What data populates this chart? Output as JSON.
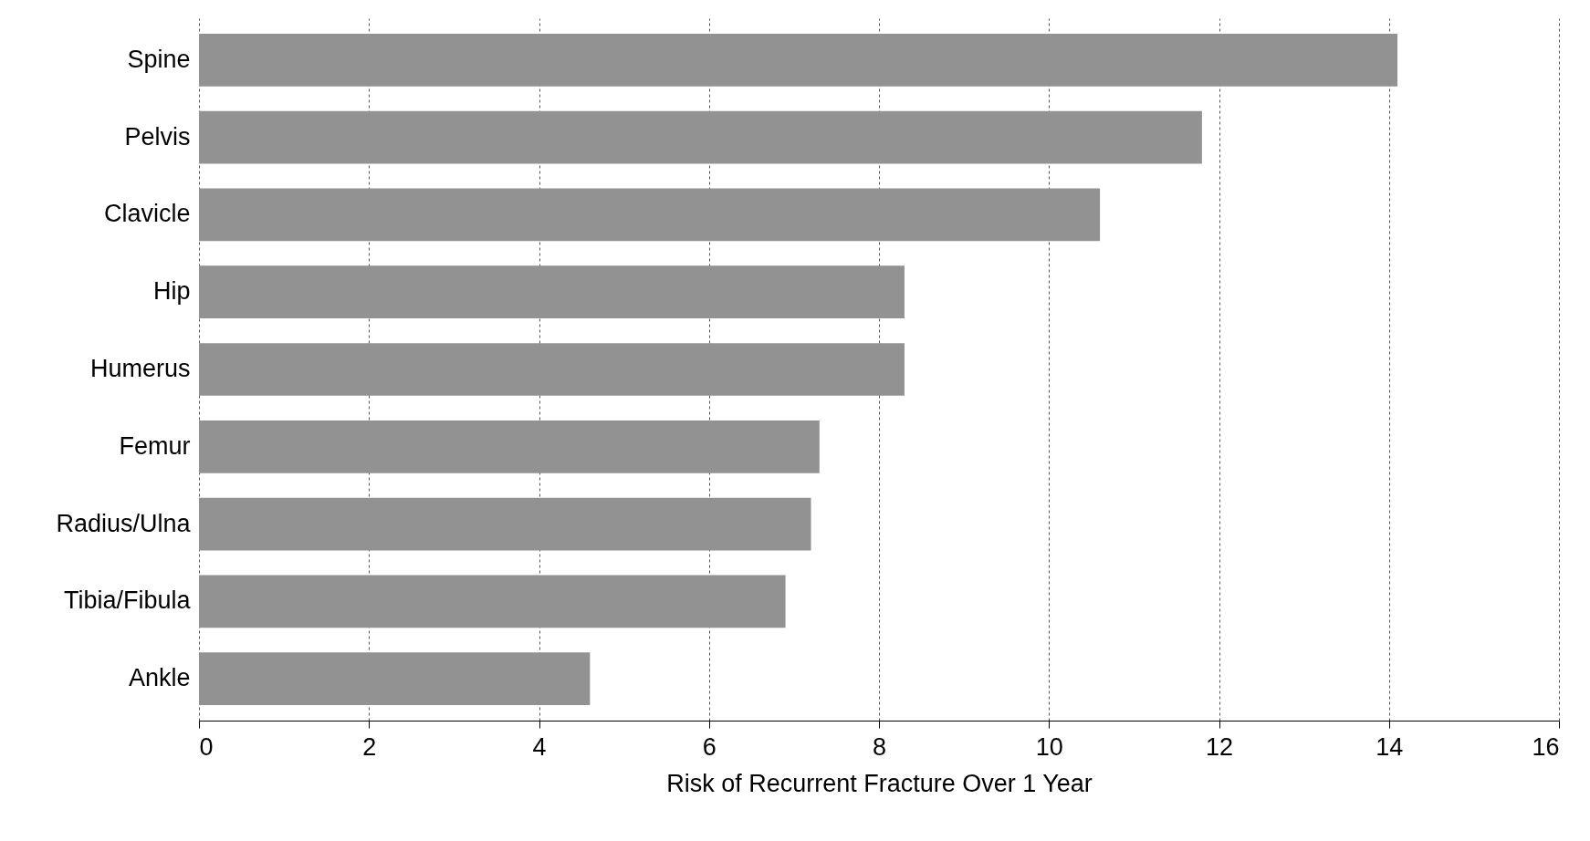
{
  "chart_data": {
    "type": "bar",
    "orientation": "horizontal",
    "xlabel": "Risk of Recurrent Fracture Over 1 Year",
    "categories": [
      "Spine",
      "Pelvis",
      "Clavicle",
      "Hip",
      "Humerus",
      "Femur",
      "Radius/Ulna",
      "Tibia/Fibula",
      "Ankle"
    ],
    "values": [
      14.1,
      11.8,
      10.6,
      8.3,
      8.3,
      7.3,
      7.2,
      6.9,
      4.6
    ],
    "color": "#929292",
    "xlim": [
      0,
      16
    ],
    "xticks": [
      0,
      2,
      4,
      6,
      8,
      10,
      12,
      14,
      16
    ],
    "grid": "x"
  }
}
